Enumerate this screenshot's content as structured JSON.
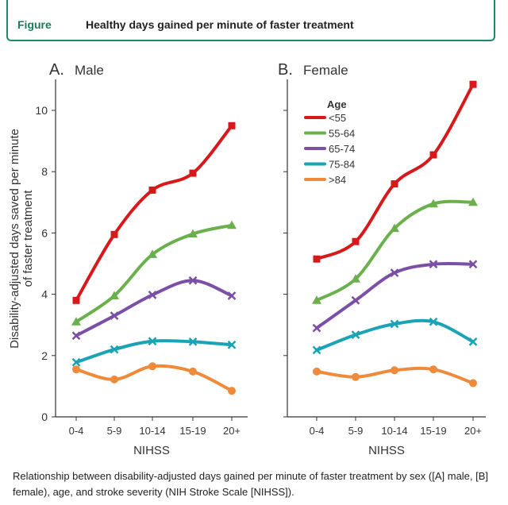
{
  "header": {
    "tag": "Figure",
    "title": "Healthy days gained per minute of faster treatment"
  },
  "caption": "Relationship between disability-adjusted days gained per minute of faster treatment by sex ([A] male, [B] female), age, and stroke severity (NIH Stroke Scale [NIHSS]).",
  "colors": {
    "<55": "#d7191c",
    "55-64": "#6ab04c",
    "65-74": "#7b4fa6",
    "75-84": "#1aa3b5",
    ">84": "#ee8a3a",
    "header_border": "#1a8a6a"
  },
  "chart_data": [
    {
      "type": "line",
      "panel_letter": "A.",
      "panel_name": "Male",
      "xlabel": "NIHSS",
      "ylabel": "Disability-adjusted days saved per minute of faster treatment",
      "categories": [
        "0-4",
        "5-9",
        "10-14",
        "15-19",
        "20+"
      ],
      "ylim": [
        0,
        11
      ],
      "yticks": [
        0,
        2,
        4,
        6,
        8,
        10
      ],
      "series": [
        {
          "name": "<55",
          "values": [
            3.8,
            5.95,
            7.4,
            7.95,
            9.5
          ],
          "marker": "square"
        },
        {
          "name": "55-64",
          "values": [
            3.1,
            3.95,
            5.3,
            5.97,
            6.25
          ],
          "marker": "triangle"
        },
        {
          "name": "65-74",
          "values": [
            2.65,
            3.3,
            3.98,
            4.45,
            3.95
          ],
          "marker": "x"
        },
        {
          "name": "75-84",
          "values": [
            1.78,
            2.2,
            2.47,
            2.45,
            2.35
          ],
          "marker": "x"
        },
        {
          "name": ">84",
          "values": [
            1.55,
            1.22,
            1.65,
            1.48,
            0.85
          ],
          "marker": "circle"
        }
      ]
    },
    {
      "type": "line",
      "panel_letter": "B.",
      "panel_name": "Female",
      "xlabel": "NIHSS",
      "categories": [
        "0-4",
        "5-9",
        "10-14",
        "15-19",
        "20+"
      ],
      "ylim": [
        0,
        11
      ],
      "legend_title": "Age",
      "legend_position": "top-left",
      "series": [
        {
          "name": "<55",
          "values": [
            5.15,
            5.72,
            7.6,
            8.55,
            10.85
          ],
          "marker": "square"
        },
        {
          "name": "55-64",
          "values": [
            3.8,
            4.5,
            6.15,
            6.95,
            7.0
          ],
          "marker": "triangle"
        },
        {
          "name": "65-74",
          "values": [
            2.9,
            3.8,
            4.7,
            4.98,
            4.98
          ],
          "marker": "x"
        },
        {
          "name": "75-84",
          "values": [
            2.18,
            2.68,
            3.03,
            3.1,
            2.45
          ],
          "marker": "x"
        },
        {
          "name": ">84",
          "values": [
            1.48,
            1.3,
            1.52,
            1.55,
            1.1
          ],
          "marker": "circle"
        }
      ]
    }
  ]
}
